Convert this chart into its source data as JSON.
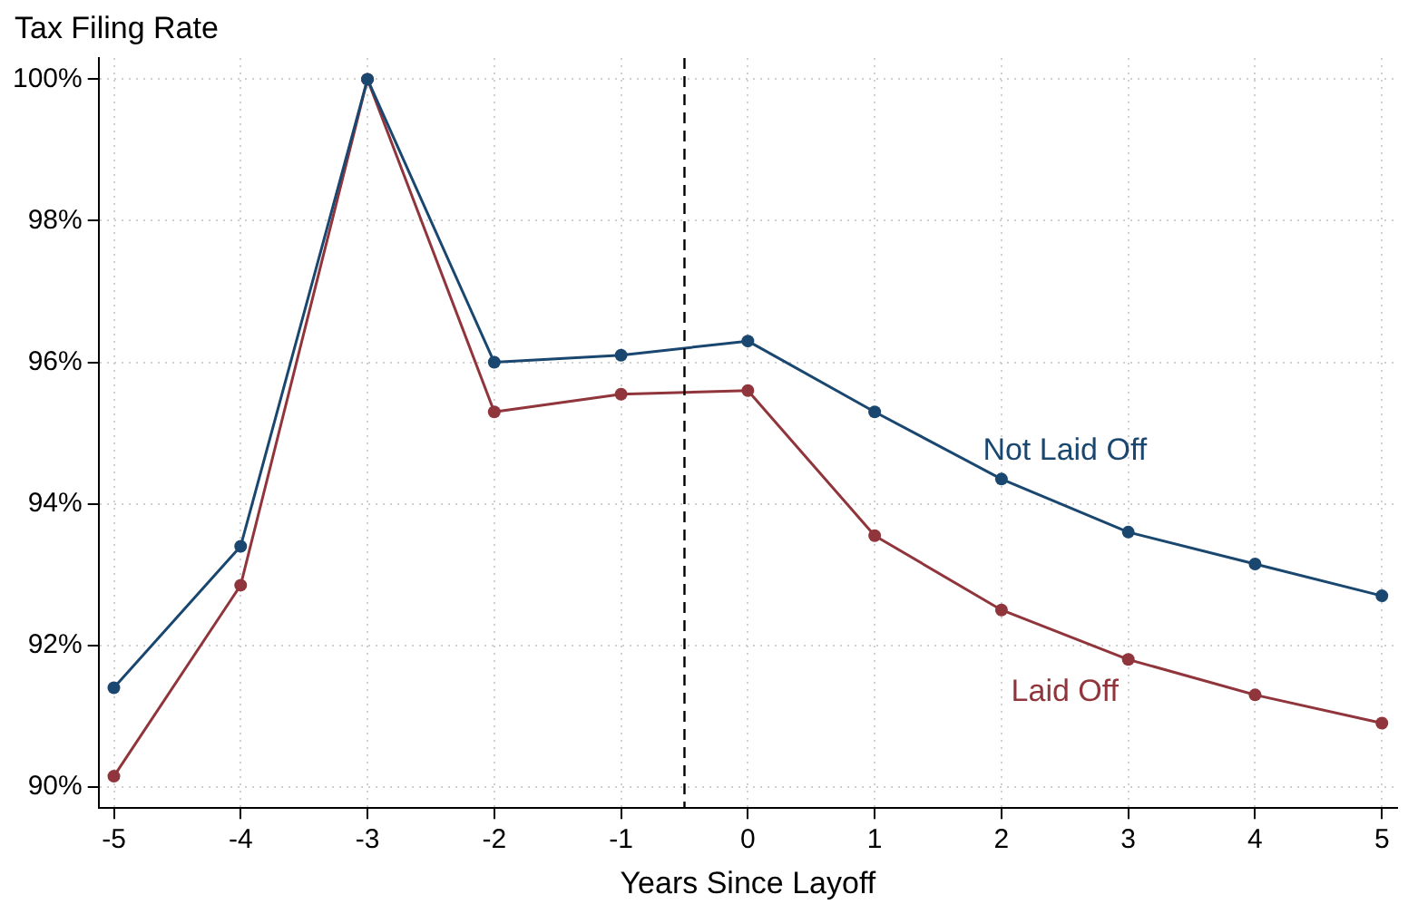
{
  "chart_data": {
    "type": "line",
    "ylabel": "Tax Filing Rate",
    "xlabel": "Years Since Layoff",
    "x": [
      -5,
      -4,
      -3,
      -2,
      -1,
      0,
      1,
      2,
      3,
      4,
      5
    ],
    "series": [
      {
        "name": "Not Laid Off",
        "color": "#1a476f",
        "values": [
          91.4,
          93.4,
          100,
          96.0,
          96.1,
          96.3,
          95.3,
          94.35,
          93.6,
          93.15,
          92.7
        ]
      },
      {
        "name": "Laid Off",
        "color": "#90353b",
        "values": [
          90.15,
          92.85,
          100,
          95.3,
          95.55,
          95.6,
          93.55,
          92.5,
          91.8,
          91.3,
          90.9
        ]
      }
    ],
    "xlim": [
      -5.12,
      5.12
    ],
    "xticks": [
      -5,
      -4,
      -3,
      -2,
      -1,
      0,
      1,
      2,
      3,
      4,
      5
    ],
    "ylim": [
      89.7,
      100.3
    ],
    "yticks": [
      {
        "value": 90,
        "label": "90%"
      },
      {
        "value": 92,
        "label": "92%"
      },
      {
        "value": 94,
        "label": "94%"
      },
      {
        "value": 96,
        "label": "96%"
      },
      {
        "value": 98,
        "label": "98%"
      },
      {
        "value": 100,
        "label": "100%"
      }
    ],
    "ref_lines": [
      {
        "axis": "x",
        "value": -0.5,
        "line_style": "dashed",
        "color": "#000000"
      }
    ],
    "grid": true,
    "marker": "circle",
    "line_style": "solid",
    "legend": false
  }
}
